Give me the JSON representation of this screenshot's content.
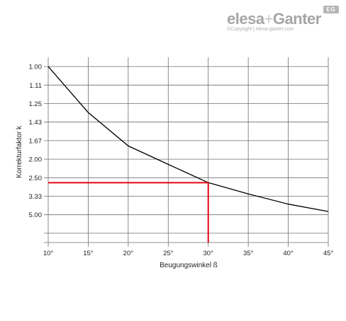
{
  "logo": {
    "name_part1": "elesa",
    "plus": "+",
    "name_part2": "Ganter",
    "badge": "EG",
    "copyright": "©Copyright | elesa-ganter.com"
  },
  "colors": {
    "grid": "#6e6e6e",
    "curve": "#000000",
    "highlight": "#e30613"
  },
  "chart_data": {
    "type": "line",
    "xlabel": "Beugungswinkel ß",
    "ylabel": "Korrekturfaktor k",
    "x_ticks": [
      "10°",
      "15°",
      "20°",
      "25°",
      "30°",
      "35°",
      "40°",
      "45°"
    ],
    "y_ticks": [
      "1.00",
      "1.11",
      "1.25",
      "1.43",
      "1.67",
      "2.00",
      "2.50",
      "3.33",
      "5.00"
    ],
    "xlim": [
      10,
      45
    ],
    "grid": true,
    "series": [
      {
        "x": [
          10,
          15,
          20,
          25,
          30,
          35,
          40,
          45
        ],
        "y": [
          1.0,
          1.33,
          1.75,
          2.12,
          2.68,
          3.2,
          3.89,
          4.6
        ]
      }
    ],
    "highlight": {
      "x": 30,
      "y": 2.68
    }
  }
}
